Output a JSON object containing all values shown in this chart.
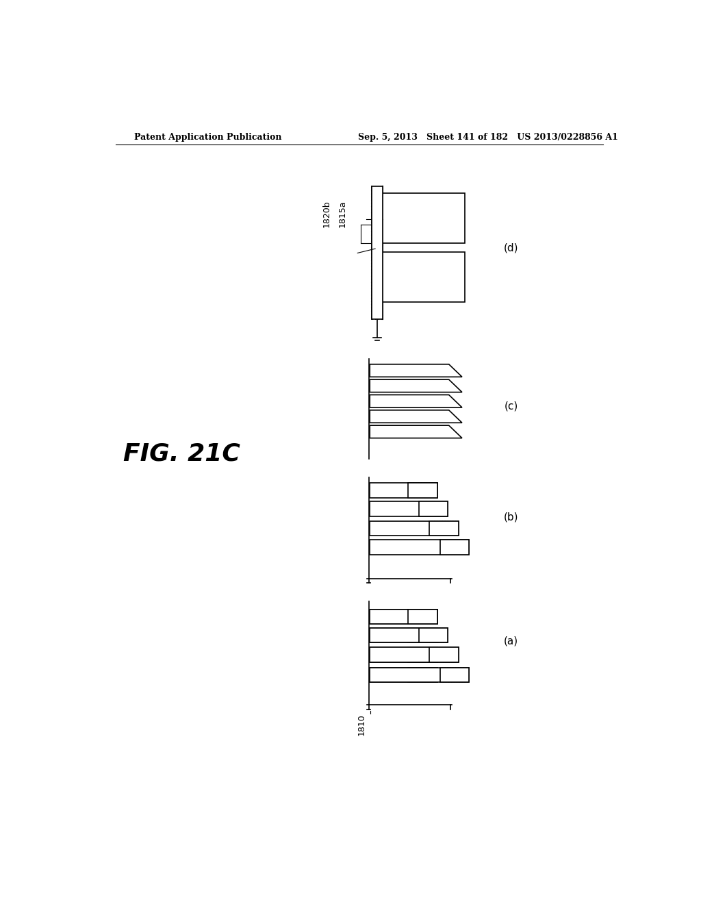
{
  "title": "FIG. 21C",
  "header_left": "Patent Application Publication",
  "header_right": "Sep. 5, 2013   Sheet 141 of 182   US 2013/0228856 A1",
  "bg_color": "#ffffff",
  "label_a": "(a)",
  "label_b": "(b)",
  "label_c": "(c)",
  "label_d": "(d)",
  "label_1810": "1810",
  "label_1815a": "1815a",
  "label_1820b": "1820b"
}
